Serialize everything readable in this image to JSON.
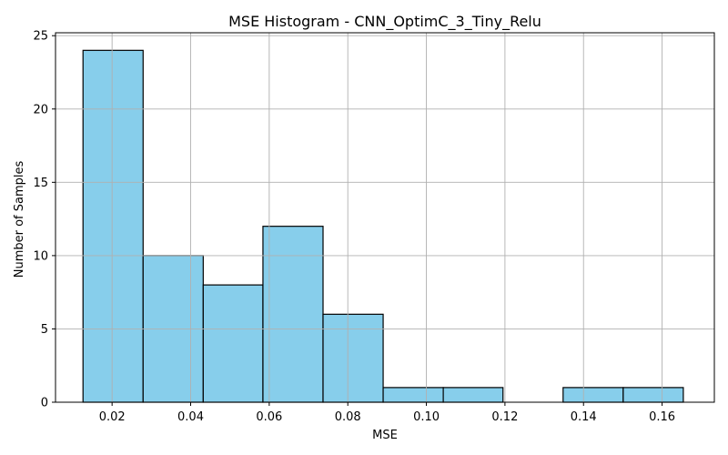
{
  "chart_data": {
    "type": "bar",
    "title": "MSE Histogram - CNN_OptimC_3_Tiny_Relu",
    "xlabel": "MSE",
    "ylabel": "Number of Samples",
    "xlim": [
      0.0056,
      0.1733
    ],
    "ylim": [
      0,
      25.2
    ],
    "grid": true,
    "bar_color": "#87ceeb",
    "edge_color": "#000000",
    "bins": [
      {
        "x0": 0.0126,
        "x1": 0.0279,
        "count": 24
      },
      {
        "x0": 0.0279,
        "x1": 0.0432,
        "count": 10
      },
      {
        "x0": 0.0432,
        "x1": 0.0584,
        "count": 8
      },
      {
        "x0": 0.0584,
        "x1": 0.0737,
        "count": 12
      },
      {
        "x0": 0.0737,
        "x1": 0.089,
        "count": 6
      },
      {
        "x0": 0.089,
        "x1": 0.1043,
        "count": 1
      },
      {
        "x0": 0.1043,
        "x1": 0.1195,
        "count": 1
      },
      {
        "x0": 0.1195,
        "x1": 0.1348,
        "count": 0
      },
      {
        "x0": 0.1348,
        "x1": 0.1501,
        "count": 1
      },
      {
        "x0": 0.1501,
        "x1": 0.1654,
        "count": 1
      }
    ],
    "xticks": [
      {
        "value": 0.02,
        "label": "0.02"
      },
      {
        "value": 0.04,
        "label": "0.04"
      },
      {
        "value": 0.06,
        "label": "0.06"
      },
      {
        "value": 0.08,
        "label": "0.08"
      },
      {
        "value": 0.1,
        "label": "0.10"
      },
      {
        "value": 0.12,
        "label": "0.12"
      },
      {
        "value": 0.14,
        "label": "0.14"
      },
      {
        "value": 0.16,
        "label": "0.16"
      }
    ],
    "yticks": [
      {
        "value": 0,
        "label": "0"
      },
      {
        "value": 5,
        "label": "5"
      },
      {
        "value": 10,
        "label": "10"
      },
      {
        "value": 15,
        "label": "15"
      },
      {
        "value": 20,
        "label": "20"
      },
      {
        "value": 25,
        "label": "25"
      }
    ]
  }
}
